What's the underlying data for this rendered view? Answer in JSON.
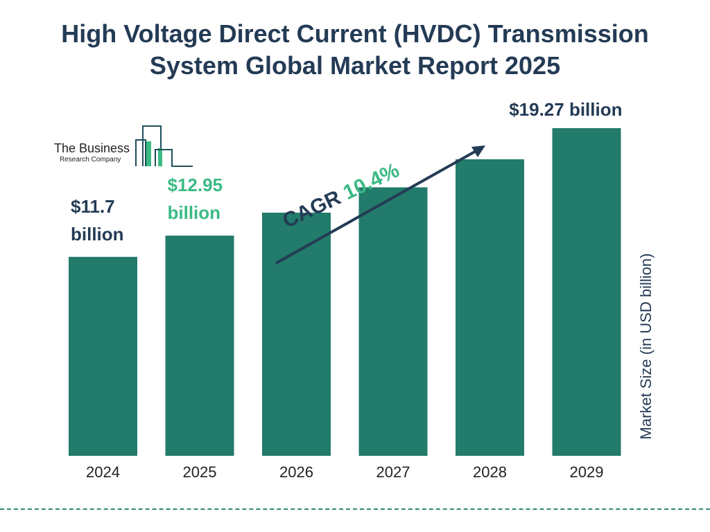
{
  "title_line1": "High Voltage Direct Current (HVDC) Transmission",
  "title_line2": "System Global Market Report 2025",
  "logo": {
    "name": "The Business",
    "sub": "Research Company"
  },
  "cagr": {
    "label": "CAGR",
    "value": "10.4%"
  },
  "colors": {
    "bar": "#227b6b",
    "title": "#243b55",
    "highlight": "#3bba84",
    "text": "#243b55"
  },
  "chart_data": {
    "type": "bar",
    "title": "High Voltage Direct Current (HVDC) Transmission System Global Market Report 2025",
    "categories": [
      "2024",
      "2025",
      "2026",
      "2027",
      "2028",
      "2029"
    ],
    "values": [
      11.7,
      12.95,
      14.3,
      15.79,
      17.44,
      19.27
    ],
    "ylabel": "Market Size (in USD billion)",
    "xlabel": "",
    "data_labels": [
      {
        "index": 0,
        "line1": "$11.7",
        "line2": "billion",
        "highlight": false
      },
      {
        "index": 1,
        "line1": "$12.95",
        "line2": "billion",
        "highlight": true
      },
      {
        "index": 5,
        "line1": "$19.27 billion",
        "line2": "",
        "highlight": false
      }
    ],
    "grid": false,
    "legend": "none"
  }
}
